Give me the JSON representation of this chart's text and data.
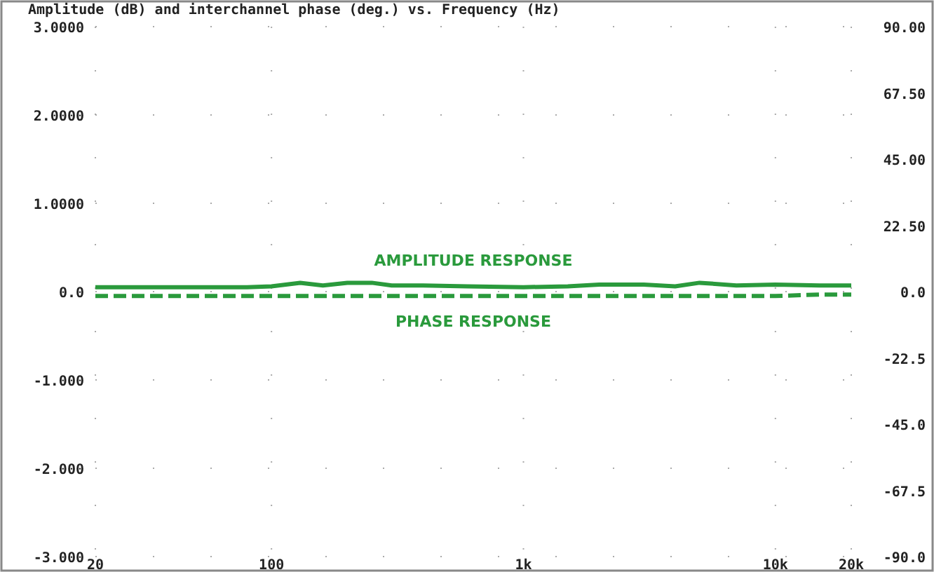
{
  "chart_data": {
    "type": "line",
    "title": "Amplitude (dB) and interchannel phase (deg.) vs. Frequency (Hz)",
    "log": "x",
    "grid": true,
    "xlim": [
      20,
      20000
    ],
    "xticks": [
      20,
      100,
      {
        "value": 1000,
        "label": "1k"
      },
      {
        "value": 10000,
        "label": "10k"
      },
      {
        "value": 20000,
        "label": "20k"
      }
    ],
    "ylim": [
      -3,
      3
    ],
    "yticks": [
      {
        "value": -3,
        "label": "-3.000"
      },
      {
        "value": -2,
        "label": "-2.000"
      },
      {
        "value": -1,
        "label": "-1.000"
      },
      {
        "value": 0,
        "label": "0.0"
      },
      {
        "value": 1,
        "label": "1.0000"
      },
      {
        "value": 2,
        "label": "2.0000"
      },
      {
        "value": 3,
        "label": "3.0000"
      }
    ],
    "y2lim": [
      -90,
      90
    ],
    "y2ticks": [
      {
        "value": -90,
        "label": "-90.0"
      },
      -67.5,
      {
        "value": -45,
        "label": "-45.0"
      },
      -22.5,
      {
        "value": 0,
        "label": "0.0"
      },
      {
        "value": 22.5,
        "label": "22.50"
      },
      {
        "value": 45,
        "label": "45.00"
      },
      {
        "value": 67.5,
        "label": "67.50"
      },
      {
        "value": 90,
        "label": "90.00"
      }
    ],
    "x": [
      20,
      40,
      80,
      100,
      130,
      160,
      200,
      250,
      300,
      400,
      600,
      1000,
      1500,
      2000,
      3000,
      4000,
      5000,
      7000,
      10000,
      15000,
      20000
    ],
    "series": [
      {
        "name": "AMPLITUDE RESPONSE",
        "color": "#2a9a3c",
        "line_style": "solid",
        "values": [
          0.05,
          0.05,
          0.05,
          0.06,
          0.1,
          0.07,
          0.1,
          0.1,
          0.07,
          0.07,
          0.06,
          0.05,
          0.06,
          0.08,
          0.08,
          0.06,
          0.1,
          0.07,
          0.08,
          0.07,
          0.07
        ]
      },
      {
        "name": "PHASE RESPONSE",
        "color": "#2a9a3c",
        "line_style": "dashed",
        "axis": "y2",
        "values": [
          -1.5,
          -1.5,
          -1.5,
          -1.5,
          -1.5,
          -1.5,
          -1.5,
          -1.5,
          -1.5,
          -1.5,
          -1.5,
          -1.5,
          -1.5,
          -1.5,
          -1.5,
          -1.5,
          -1.5,
          -1.5,
          -1.5,
          -1,
          -1
        ]
      }
    ]
  }
}
